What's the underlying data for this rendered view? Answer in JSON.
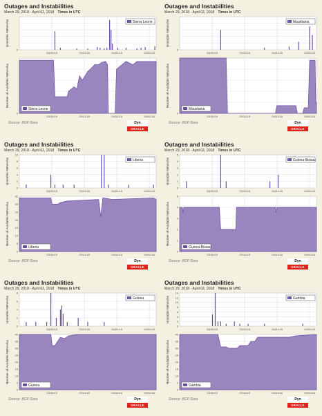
{
  "chart_data": [
    {
      "type": "area",
      "title": "Outages and Instabilities",
      "date_range": "March 29, 2018 - April 02, 2018",
      "time_note": "Times in UTC",
      "source": "BGP Data",
      "logo_top": "Dyn",
      "logo_bottom": "ORACLE",
      "legend": "Sierra Leone",
      "x_ticks": [
        "03/30/18",
        "03/31/18",
        "04/01/18",
        "04/02/18"
      ],
      "top": {
        "ylabel": "Unstable Networks",
        "yticks": [
          "0",
          "",
          "",
          "",
          "",
          ""
        ],
        "ylim": [
          0,
          50
        ],
        "spikes": [
          [
            0.26,
            28
          ],
          [
            0.3,
            3
          ],
          [
            0.42,
            2
          ],
          [
            0.5,
            2
          ],
          [
            0.57,
            4
          ],
          [
            0.59,
            3
          ],
          [
            0.62,
            2
          ],
          [
            0.64,
            3
          ],
          [
            0.66,
            45
          ],
          [
            0.67,
            30
          ],
          [
            0.68,
            9
          ],
          [
            0.72,
            3
          ],
          [
            0.78,
            3
          ],
          [
            0.86,
            2
          ],
          [
            0.89,
            3
          ],
          [
            0.92,
            4
          ],
          [
            0.99,
            5
          ]
        ]
      },
      "bottom": {
        "ylabel": "Number of Available Networks",
        "yticks": [
          "0",
          "",
          "",
          "",
          "",
          ""
        ],
        "ylim": [
          0,
          50
        ],
        "series": [
          [
            0,
            48
          ],
          [
            0.25,
            48
          ],
          [
            0.26,
            15
          ],
          [
            0.35,
            15
          ],
          [
            0.36,
            20
          ],
          [
            0.4,
            24
          ],
          [
            0.42,
            22
          ],
          [
            0.44,
            34
          ],
          [
            0.46,
            30
          ],
          [
            0.5,
            38
          ],
          [
            0.52,
            40
          ],
          [
            0.55,
            44
          ],
          [
            0.58,
            44
          ],
          [
            0.6,
            46
          ],
          [
            0.63,
            47
          ],
          [
            0.645,
            44
          ],
          [
            0.65,
            0
          ],
          [
            0.7,
            0
          ],
          [
            0.71,
            40
          ],
          [
            0.75,
            44
          ],
          [
            0.78,
            47
          ],
          [
            0.83,
            44
          ],
          [
            0.86,
            47
          ],
          [
            1,
            47
          ]
        ]
      }
    },
    {
      "type": "area",
      "title": "Outages and Instabilities",
      "date_range": "March 29, 2018 - April 02, 2018",
      "time_note": "Times in UTC",
      "source": "BGP Data",
      "logo_top": "Dyn",
      "logo_bottom": "ORACLE",
      "legend": "Mauritania",
      "x_ticks": [
        "03/30/18",
        "03/31/18",
        "04/01/18",
        "04/02/18"
      ],
      "top": {
        "ylabel": "Unstable Networks",
        "yticks": [
          "0",
          "",
          "",
          "",
          "",
          ""
        ],
        "ylim": [
          0,
          50
        ],
        "spikes": [
          [
            0.3,
            30
          ],
          [
            0.62,
            3
          ],
          [
            0.8,
            5
          ],
          [
            0.87,
            12
          ],
          [
            0.95,
            35
          ],
          [
            0.97,
            22
          ]
        ]
      },
      "bottom": {
        "ylabel": "Number of Available Networks",
        "yticks": [
          "0",
          "",
          "",
          "",
          "",
          ""
        ],
        "ylim": [
          0,
          50
        ],
        "series": [
          [
            0,
            50
          ],
          [
            0.34,
            50
          ],
          [
            0.35,
            0
          ],
          [
            0.7,
            0
          ],
          [
            0.71,
            7
          ],
          [
            0.85,
            7
          ],
          [
            0.86,
            0
          ],
          [
            0.9,
            0
          ],
          [
            0.91,
            5
          ],
          [
            0.94,
            5
          ],
          [
            0.95,
            48
          ],
          [
            0.99,
            48
          ],
          [
            0.995,
            10
          ],
          [
            1,
            10
          ]
        ]
      }
    },
    {
      "type": "area",
      "title": "Outages and Instabilities",
      "date_range": "March 29, 2018 - April 02, 2018",
      "time_note": "Times in UTC",
      "source": "BGP Data",
      "logo_top": "Dyn",
      "logo_bottom": "ORACLE",
      "legend": "Liberia",
      "x_ticks": [
        "03/30/18",
        "03/31/18",
        "04/01/18",
        "04/02/18"
      ],
      "top": {
        "ylabel": "Unstable Networks",
        "yticks": [
          "0",
          "2",
          "4",
          "6",
          "8",
          "10"
        ],
        "ylim": [
          0,
          10
        ],
        "spikes": [
          [
            0.05,
            1
          ],
          [
            0.23,
            4
          ],
          [
            0.26,
            1
          ],
          [
            0.32,
            1
          ],
          [
            0.4,
            1
          ],
          [
            0.6,
            10
          ],
          [
            0.62,
            10
          ],
          [
            0.65,
            1
          ],
          [
            0.8,
            1
          ],
          [
            0.98,
            1
          ]
        ]
      },
      "bottom": {
        "ylabel": "Number of Available Networks",
        "yticks": [
          "0",
          "5",
          "10",
          "15",
          "20",
          "25",
          "30",
          "35"
        ],
        "ylim": [
          0,
          35
        ],
        "series": [
          [
            0,
            34
          ],
          [
            0.23,
            34
          ],
          [
            0.24,
            30
          ],
          [
            0.28,
            30
          ],
          [
            0.3,
            31
          ],
          [
            0.35,
            32
          ],
          [
            0.58,
            33
          ],
          [
            0.595,
            22
          ],
          [
            0.61,
            34
          ],
          [
            0.68,
            33
          ],
          [
            0.98,
            34
          ],
          [
            1,
            33
          ]
        ]
      }
    },
    {
      "type": "area",
      "title": "Outages and Instabilities",
      "date_range": "March 29, 2018 - April 02, 2018",
      "time_note": "Times in UTC",
      "source": "BGP Data",
      "logo_top": "Dyn",
      "logo_bottom": "ORACLE",
      "legend": "Guinea-Bissau",
      "x_ticks": [
        "03/30/18",
        "03/31/18",
        "04/01/18",
        "04/02/18"
      ],
      "top": {
        "ylabel": "Unstable Networks",
        "yticks": [
          "0",
          "1",
          "2",
          "3",
          "4",
          "5"
        ],
        "ylim": [
          0,
          5
        ],
        "spikes": [
          [
            0.05,
            1
          ],
          [
            0.3,
            5
          ],
          [
            0.34,
            1
          ],
          [
            0.66,
            1
          ],
          [
            0.72,
            2
          ]
        ]
      },
      "bottom": {
        "ylabel": "Number of Available Networks",
        "yticks": [
          "0",
          "1",
          "2",
          "3",
          "4",
          "5"
        ],
        "ylim": [
          0,
          5
        ],
        "series": [
          [
            0,
            4
          ],
          [
            0.02,
            4
          ],
          [
            0.025,
            3.5
          ],
          [
            0.03,
            4
          ],
          [
            0.29,
            4
          ],
          [
            0.3,
            2
          ],
          [
            0.41,
            2
          ],
          [
            0.415,
            4
          ],
          [
            0.7,
            4
          ],
          [
            0.705,
            3.5
          ],
          [
            0.71,
            4
          ],
          [
            1,
            4
          ]
        ]
      }
    },
    {
      "type": "area",
      "title": "Outages and Instabilities",
      "date_range": "March 29, 2018 - April 02, 2018",
      "time_note": "Times in UTC",
      "source": "BGP Data",
      "logo_top": "Dyn",
      "logo_bottom": "ORACLE",
      "legend": "Guinea",
      "x_ticks": [
        "03/30/18",
        "03/31/18",
        "04/01/18",
        "04/02/18"
      ],
      "top": {
        "ylabel": "Unstable Networks",
        "yticks": [
          "0",
          "2",
          "4",
          "6",
          "8"
        ],
        "ylim": [
          0,
          8
        ],
        "spikes": [
          [
            0.05,
            1
          ],
          [
            0.12,
            1
          ],
          [
            0.2,
            1
          ],
          [
            0.23,
            8
          ],
          [
            0.27,
            2
          ],
          [
            0.3,
            4
          ],
          [
            0.31,
            5
          ],
          [
            0.32,
            3
          ],
          [
            0.35,
            1
          ],
          [
            0.43,
            2
          ],
          [
            0.5,
            1
          ],
          [
            0.62,
            1
          ]
        ]
      },
      "bottom": {
        "ylabel": "Number of Available Networks",
        "yticks": [
          "0",
          "5",
          "10",
          "15",
          "20",
          "25",
          "30",
          "35",
          "40"
        ],
        "ylim": [
          0,
          40
        ],
        "series": [
          [
            0,
            40
          ],
          [
            0.23,
            40
          ],
          [
            0.24,
            32
          ],
          [
            0.26,
            32
          ],
          [
            0.28,
            35
          ],
          [
            0.3,
            38
          ],
          [
            0.33,
            37
          ],
          [
            0.36,
            39
          ],
          [
            0.42,
            40
          ],
          [
            1,
            40
          ]
        ]
      }
    },
    {
      "type": "area",
      "title": "Outages and Instabilities",
      "date_range": "March 29, 2018 - April 02, 2018",
      "time_note": "Times in UTC",
      "source": "BGP Data",
      "logo_top": "Dyn",
      "logo_bottom": "ORACLE",
      "legend": "Gambia",
      "x_ticks": [
        "03/30/18",
        "03/31/18",
        "04/01/18",
        "04/02/18"
      ],
      "top": {
        "ylabel": "Unstable Networks",
        "yticks": [
          "0",
          "2",
          "4",
          "6",
          "8",
          "10",
          "12",
          "14"
        ],
        "ylim": [
          0,
          14
        ],
        "spikes": [
          [
            0.26,
            14
          ],
          [
            0.24,
            5
          ],
          [
            0.28,
            2
          ],
          [
            0.3,
            2
          ],
          [
            0.34,
            1
          ],
          [
            0.4,
            2
          ],
          [
            0.44,
            1
          ],
          [
            0.5,
            1
          ],
          [
            0.62,
            1
          ],
          [
            0.9,
            1
          ]
        ]
      },
      "bottom": {
        "ylabel": "Number of Available Networks",
        "yticks": [
          "0",
          "5",
          "10",
          "15",
          "20",
          "25",
          "30",
          "35",
          "40"
        ],
        "ylim": [
          0,
          40
        ],
        "series": [
          [
            0,
            40
          ],
          [
            0.28,
            40
          ],
          [
            0.3,
            31
          ],
          [
            0.34,
            31
          ],
          [
            0.36,
            30
          ],
          [
            0.42,
            30
          ],
          [
            0.44,
            32
          ],
          [
            0.5,
            32
          ],
          [
            0.52,
            35
          ],
          [
            0.55,
            35
          ],
          [
            0.57,
            38
          ],
          [
            0.65,
            38
          ],
          [
            0.8,
            38
          ],
          [
            0.85,
            39
          ],
          [
            1,
            40
          ]
        ]
      }
    }
  ],
  "colors": {
    "fill": "#9a86bf",
    "line": "#6b4fa0",
    "grid": "#d8d6e6",
    "bg": "#ffffff"
  }
}
